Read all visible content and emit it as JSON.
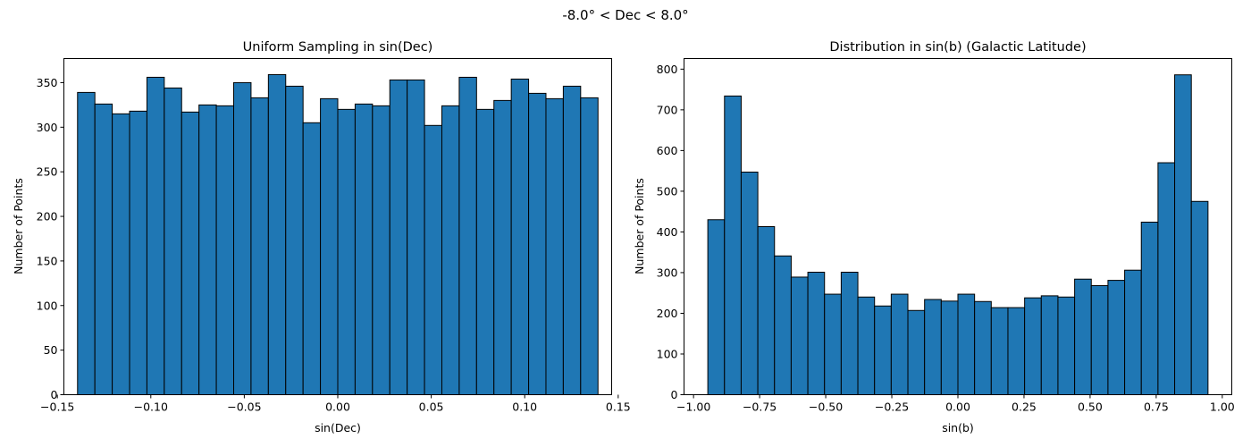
{
  "figure": {
    "suptitle": "-8.0° < Dec < 8.0°"
  },
  "chart_data": [
    {
      "type": "bar",
      "title": "Uniform Sampling in sin(Dec)",
      "xlabel": "sin(Dec)",
      "ylabel": "Number of Points",
      "xlim": [
        -0.1465,
        0.1465
      ],
      "ylim": [
        0,
        377
      ],
      "bin_range": [
        -0.1392,
        0.1392
      ],
      "xticks": [
        -0.15,
        -0.1,
        -0.05,
        0.0,
        0.05,
        0.1,
        0.15
      ],
      "xtick_labels": [
        "−0.15",
        "−0.10",
        "−0.05",
        "0.00",
        "0.05",
        "0.10",
        "0.15"
      ],
      "yticks": [
        0,
        50,
        100,
        150,
        200,
        250,
        300,
        350
      ],
      "ytick_labels": [
        "0",
        "50",
        "100",
        "150",
        "200",
        "250",
        "300",
        "350"
      ],
      "grid": false,
      "values": [
        339,
        326,
        315,
        318,
        356,
        344,
        317,
        325,
        324,
        350,
        333,
        359,
        346,
        305,
        332,
        320,
        326,
        324,
        353,
        353,
        302,
        324,
        356,
        320,
        330,
        354,
        338,
        332,
        346,
        333
      ]
    },
    {
      "type": "bar",
      "title": "Distribution in sin(b) (Galactic Latitude)",
      "xlabel": "sin(b)",
      "ylabel": "Number of Points",
      "xlim": [
        -1.036,
        1.036
      ],
      "ylim": [
        0,
        826
      ],
      "bin_range": [
        -0.946,
        0.946
      ],
      "xticks": [
        -1.0,
        -0.75,
        -0.5,
        -0.25,
        0.0,
        0.25,
        0.5,
        0.75,
        1.0
      ],
      "xtick_labels": [
        "−1.00",
        "−0.75",
        "−0.50",
        "−0.25",
        "0.00",
        "0.25",
        "0.50",
        "0.75",
        "1.00"
      ],
      "yticks": [
        0,
        100,
        200,
        300,
        400,
        500,
        600,
        700,
        800
      ],
      "ytick_labels": [
        "0",
        "100",
        "200",
        "300",
        "400",
        "500",
        "600",
        "700",
        "800"
      ],
      "grid": false,
      "values": [
        430,
        734,
        547,
        413,
        341,
        289,
        301,
        247,
        301,
        240,
        218,
        247,
        207,
        234,
        230,
        247,
        229,
        214,
        214,
        238,
        243,
        240,
        284,
        268,
        281,
        306,
        424,
        570,
        786,
        475
      ]
    }
  ]
}
